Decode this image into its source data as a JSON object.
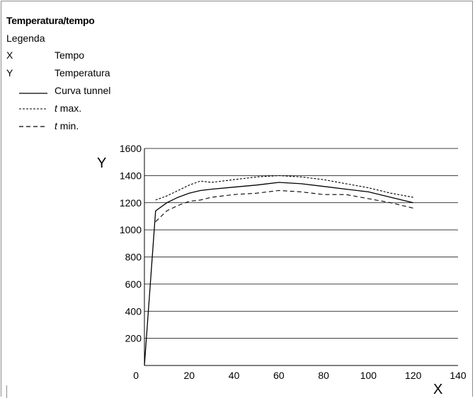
{
  "chart_data": {
    "type": "line",
    "title": "Temperatura/tempo",
    "legend": {
      "heading": "Legenda",
      "entries": [
        {
          "key": "X",
          "label": "Tempo"
        },
        {
          "key": "Y",
          "label": "Temperatura"
        }
      ]
    },
    "xlabel": "X",
    "ylabel": "Y",
    "xlim": [
      0,
      140
    ],
    "ylim": [
      0,
      1600
    ],
    "xticks": [
      0,
      20,
      40,
      60,
      80,
      100,
      120,
      140
    ],
    "yticks": [
      200,
      400,
      600,
      800,
      1000,
      1200,
      1400,
      1600
    ],
    "grid": "horizontal",
    "series": [
      {
        "name": "Curva tunnel",
        "style": "solid",
        "x": [
          0,
          5,
          10,
          15,
          20,
          25,
          30,
          40,
          50,
          60,
          70,
          80,
          90,
          100,
          110,
          120
        ],
        "y": [
          0,
          1140,
          1200,
          1240,
          1270,
          1290,
          1300,
          1315,
          1330,
          1350,
          1340,
          1320,
          1300,
          1280,
          1240,
          1200
        ]
      },
      {
        "name_prefix": "t",
        "name_suffix": " max.",
        "style": "dashdot",
        "x": [
          5,
          10,
          15,
          20,
          25,
          30,
          40,
          50,
          60,
          70,
          80,
          90,
          100,
          110,
          120
        ],
        "y": [
          1220,
          1250,
          1290,
          1330,
          1360,
          1350,
          1370,
          1390,
          1400,
          1390,
          1370,
          1340,
          1310,
          1270,
          1240
        ]
      },
      {
        "name_prefix": "t",
        "name_suffix": " min.",
        "style": "dashed",
        "x": [
          5,
          10,
          15,
          20,
          25,
          30,
          40,
          50,
          60,
          70,
          80,
          90,
          100,
          110,
          120
        ],
        "y": [
          1060,
          1140,
          1180,
          1210,
          1220,
          1240,
          1260,
          1270,
          1290,
          1280,
          1260,
          1260,
          1230,
          1200,
          1160
        ]
      }
    ]
  }
}
